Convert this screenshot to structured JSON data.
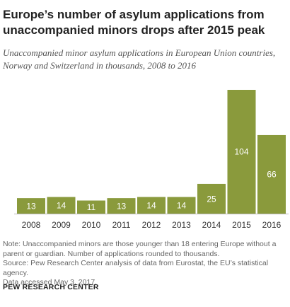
{
  "header": {
    "title_line1": "Europe’s number of asylum applications from",
    "title_line2": "unaccompanied minors drops after 2015 peak",
    "subtitle_line1": "Unaccompanied minor asylum applications in European Union countries,",
    "subtitle_line2": "Norway and Switzerland in thousands, 2008 to 2016"
  },
  "chart_data": {
    "type": "bar",
    "title": "Europe’s number of asylum applications from unaccompanied minors drops after 2015 peak",
    "subtitle": "Unaccompanied minor asylum applications in European Union countries, Norway and Switzerland in thousands, 2008 to 2016",
    "categories": [
      "2008",
      "2009",
      "2010",
      "2011",
      "2012",
      "2013",
      "2014",
      "2015",
      "2016"
    ],
    "values": [
      13,
      14,
      11,
      13,
      14,
      14,
      25,
      104,
      66
    ],
    "ylim": [
      0,
      104
    ],
    "xlabel": "",
    "ylabel": "",
    "grid": false,
    "colors": {
      "bar": "#8a9a3c",
      "label": "#ffffff"
    }
  },
  "notes": {
    "note_line1": "Note: Unaccompanied minors are those younger than 18 entering Europe without a",
    "note_line2": "parent or guardian. Number of applications rounded to thousands.",
    "source_line1": "Source: Pew Research Center analysis of data from Eurostat, the EU’s statistical agency.",
    "source_line2": "Data accessed May 3, 2017.",
    "brand": "PEW RESEARCH CENTER"
  }
}
